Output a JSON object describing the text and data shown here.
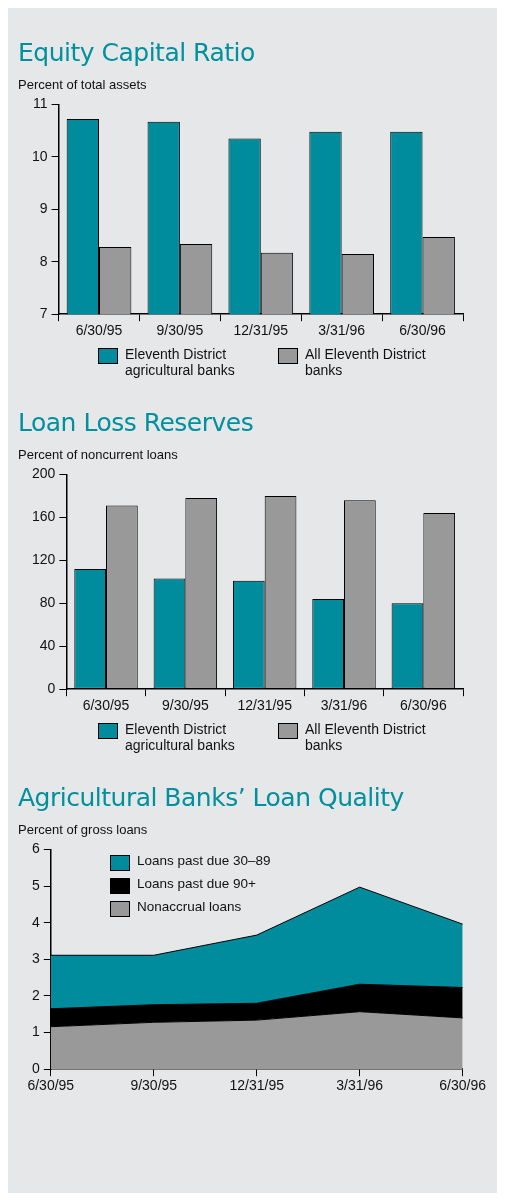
{
  "chart_data": [
    {
      "type": "bar",
      "title": "Equity Capital Ratio",
      "subtitle": "Percent of total assets",
      "categories": [
        "6/30/95",
        "9/30/95",
        "12/31/95",
        "3/31/96",
        "6/30/96"
      ],
      "series": [
        {
          "name": "Eleventh District agricultural banks",
          "color": "#008c9c",
          "values": [
            10.72,
            10.67,
            10.35,
            10.48,
            10.48
          ]
        },
        {
          "name": "All Eleventh District banks",
          "color": "#999999",
          "values": [
            8.28,
            8.34,
            8.17,
            8.15,
            8.47
          ]
        }
      ],
      "ylim": [
        7,
        11
      ],
      "yticks": [
        7,
        8,
        9,
        10,
        11
      ],
      "grid": false,
      "legend": "bottom"
    },
    {
      "type": "bar",
      "title": "Loan Loss Reserves",
      "subtitle": "Percent of noncurrent loans",
      "categories": [
        "6/30/95",
        "9/30/95",
        "12/31/95",
        "3/31/96",
        "6/30/96"
      ],
      "series": [
        {
          "name": "Eleventh District agricultural banks",
          "color": "#008c9c",
          "values": [
            112,
            103,
            101,
            84,
            80
          ]
        },
        {
          "name": "All Eleventh District banks",
          "color": "#999999",
          "values": [
            171,
            178,
            180,
            176,
            164
          ]
        }
      ],
      "ylim": [
        0,
        200
      ],
      "yticks": [
        0,
        40,
        80,
        120,
        160,
        200
      ],
      "grid": false,
      "legend": "bottom"
    },
    {
      "type": "area",
      "title": "Agricultural Banks’ Loan Quality",
      "subtitle": "Percent of gross loans",
      "categories": [
        "6/30/95",
        "9/30/95",
        "12/31/95",
        "3/31/96",
        "6/30/96"
      ],
      "stacked": true,
      "series": [
        {
          "name": "Nonaccrual loans",
          "color": "#999999",
          "values": [
            1.16,
            1.28,
            1.34,
            1.57,
            1.4
          ]
        },
        {
          "name": "Loans past due 90+",
          "color": "#000000",
          "values": [
            0.49,
            0.48,
            0.46,
            0.75,
            0.83
          ]
        },
        {
          "name": "Loans past due 30–89",
          "color": "#008c9c",
          "values": [
            1.46,
            1.35,
            1.86,
            2.65,
            1.73
          ]
        }
      ],
      "ylim": [
        0,
        6
      ],
      "yticks": [
        0,
        1,
        2,
        3,
        4,
        5,
        6
      ],
      "grid": false,
      "legend": "top left"
    }
  ]
}
